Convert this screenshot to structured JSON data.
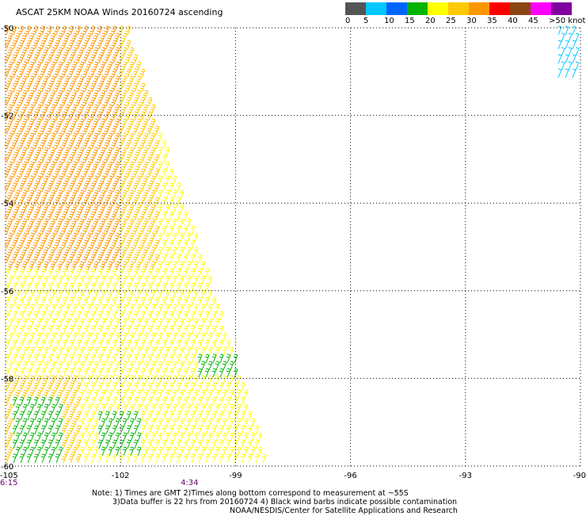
{
  "title": "ASCAT 25KM NOAA Winds 20160724 ascending",
  "legend": {
    "labels": [
      "0",
      "5",
      "10",
      "15",
      "20",
      "25",
      "30",
      "35",
      "40",
      "45",
      ">50 knots"
    ],
    "colors": [
      "#555555",
      "#00c8ff",
      "#0064ff",
      "#00b400",
      "#ffff00",
      "#ffc800",
      "#ff9600",
      "#ff0000",
      "#8b4513",
      "#ff00ff",
      "#8000a0"
    ]
  },
  "footnotes": {
    "line1": "Note: 1) Times are GMT 2)Times along bottom correspond to measurement at ~55S",
    "line2": "3)Data buffer is 22 hrs from 20160724 4) Black wind barbs indicate possible contamination",
    "line3": "NOAA/NESDIS/Center for Satellite Applications and Research"
  },
  "chart_data": {
    "type": "scatter",
    "description_type": "wind barb map",
    "x_ticks": [
      "-105",
      "-102",
      "-99",
      "-96",
      "-93",
      "-90"
    ],
    "y_ticks": [
      "-50",
      "-52",
      "-54",
      "-56",
      "-58",
      "-60"
    ],
    "xlim": [
      -105,
      -90
    ],
    "ylim": [
      -60,
      -50
    ],
    "time_labels": [
      {
        "text": "6:15",
        "lon": -105
      },
      {
        "text": "4:34",
        "lon": -100.2
      }
    ],
    "grid": true,
    "swaths": [
      {
        "name": "main",
        "lat_range": [
          -60,
          -50
        ],
        "west_lon": -105,
        "east_lon_at_north": -101.7,
        "east_lon_at_south": -98.0
      },
      {
        "name": "northeast corner",
        "lat_range": [
          -51.2,
          -50
        ],
        "west_lon": -90.6,
        "east_lon_at_north": -90.0,
        "east_lon_at_south": -90.0
      }
    ],
    "wind_regions": [
      {
        "lat_range": [
          -55.5,
          -50
        ],
        "lon_range": [
          -105,
          -102
        ],
        "speed_knots": 32
      },
      {
        "lat_range": [
          -55.5,
          -50
        ],
        "lon_range": [
          -102,
          -101
        ],
        "speed_knots": 26
      },
      {
        "lat_range": [
          -58,
          -55.5
        ],
        "lon_range": [
          -105,
          -103
        ],
        "speed_knots": 24
      },
      {
        "lat_range": [
          -58,
          -55.5
        ],
        "lon_range": [
          -103,
          -98
        ],
        "speed_knots": 21
      },
      {
        "lat_range": [
          -60,
          -58
        ],
        "lon_range": [
          -105,
          -103
        ],
        "speed_knots": 26
      },
      {
        "lat_range": [
          -60,
          -58
        ],
        "lon_range": [
          -103,
          -98
        ],
        "speed_knots": 21
      },
      {
        "lat_range": [
          -58,
          -57.5
        ],
        "lon_range": [
          -100,
          -98.8
        ],
        "speed_knots": 17
      },
      {
        "lat_range": [
          -60,
          -58.5
        ],
        "lon_range": [
          -104.8,
          -103.5
        ],
        "speed_knots": 17
      },
      {
        "lat_range": [
          -59.8,
          -58.8
        ],
        "lon_range": [
          -102.6,
          -101.5
        ],
        "speed_knots": 17
      },
      {
        "lat_range": [
          -51.2,
          -50
        ],
        "lon_range": [
          -90.6,
          -90
        ],
        "speed_knots": 8
      }
    ]
  }
}
